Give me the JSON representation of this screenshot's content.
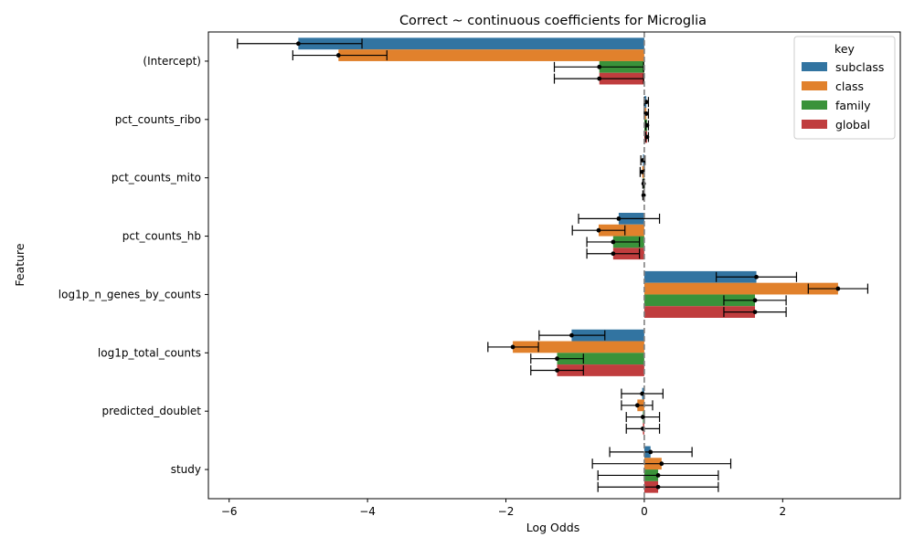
{
  "chart_data": {
    "type": "bar",
    "orientation": "horizontal",
    "title": "Correct ~ continuous coefficients for Microglia",
    "xlabel": "Log Odds",
    "ylabel": "Feature",
    "xlim": [
      -6.3,
      3.7
    ],
    "xticks": [
      -6,
      -4,
      -2,
      0,
      2
    ],
    "reference_line_x": 0,
    "categories": [
      "(Intercept)",
      "pct_counts_ribo",
      "pct_counts_mito",
      "pct_counts_hb",
      "log1p_n_genes_by_counts",
      "log1p_total_counts",
      "predicted_doublet",
      "study"
    ],
    "legend": {
      "title": "key",
      "position": "top-right"
    },
    "series": [
      {
        "name": "subclass",
        "color": "#3274a1",
        "values": [
          -5.0,
          0.03,
          -0.02,
          -0.37,
          1.62,
          -1.05,
          -0.03,
          0.09
        ],
        "ci_low": [
          -5.88,
          0.0,
          -0.05,
          -0.95,
          1.04,
          -1.52,
          -0.33,
          -0.5
        ],
        "ci_high": [
          -4.08,
          0.06,
          0.01,
          0.22,
          2.2,
          -0.57,
          0.27,
          0.69
        ]
      },
      {
        "name": "class",
        "color": "#e1812c",
        "values": [
          -4.42,
          0.03,
          -0.03,
          -0.66,
          2.8,
          -1.9,
          -0.1,
          0.25
        ],
        "ci_low": [
          -5.08,
          0.0,
          -0.06,
          -1.04,
          2.37,
          -2.26,
          -0.33,
          -0.75
        ],
        "ci_high": [
          -3.72,
          0.06,
          0.0,
          -0.28,
          3.23,
          -1.53,
          0.12,
          1.25
        ]
      },
      {
        "name": "family",
        "color": "#3a923a",
        "values": [
          -0.65,
          0.04,
          -0.01,
          -0.45,
          1.6,
          -1.26,
          -0.02,
          0.2
        ],
        "ci_low": [
          -1.3,
          0.02,
          -0.02,
          -0.83,
          1.15,
          -1.64,
          -0.26,
          -0.67
        ],
        "ci_high": [
          -0.01,
          0.06,
          0.0,
          -0.07,
          2.05,
          -0.88,
          0.22,
          1.07
        ]
      },
      {
        "name": "global",
        "color": "#c03d3e",
        "values": [
          -0.65,
          0.04,
          -0.01,
          -0.45,
          1.6,
          -1.26,
          -0.02,
          0.2
        ],
        "ci_low": [
          -1.3,
          0.02,
          -0.02,
          -0.83,
          1.15,
          -1.64,
          -0.26,
          -0.67
        ],
        "ci_high": [
          -0.01,
          0.06,
          0.0,
          -0.07,
          2.05,
          -0.88,
          0.22,
          1.07
        ]
      }
    ]
  }
}
